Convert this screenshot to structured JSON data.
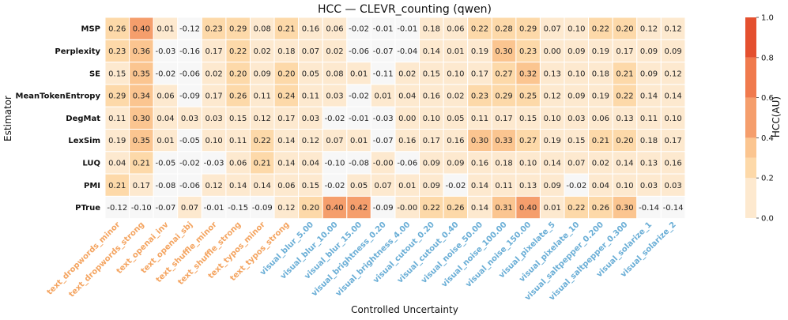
{
  "chart_data": {
    "type": "heatmap",
    "title": "HCC — CLEVR_counting (qwen)",
    "xlabel": "Controlled Uncertainty",
    "ylabel": "Estimator",
    "colorbar_label": "HCC(AU)",
    "colorbar_ticks": [
      "1.0",
      "0.8",
      "0.6",
      "0.4",
      "0.2",
      "0.0"
    ],
    "colorbar_range": [
      0,
      1
    ],
    "rows": [
      "MSP",
      "Perplexity",
      "SE",
      "MeanTokenEntropy",
      "DegMat",
      "LexSim",
      "LUQ",
      "PMI",
      "PTrue"
    ],
    "columns": [
      {
        "label": "text_dropwords_minor",
        "group": "text"
      },
      {
        "label": "text_dropwords_strong",
        "group": "text"
      },
      {
        "label": "text_openai_inv",
        "group": "text"
      },
      {
        "label": "text_openai_sbj",
        "group": "text"
      },
      {
        "label": "text_shuffle_minor",
        "group": "text"
      },
      {
        "label": "text_shuffle_strong",
        "group": "text"
      },
      {
        "label": "text_typos_minor",
        "group": "text"
      },
      {
        "label": "text_typos_strong",
        "group": "text"
      },
      {
        "label": "visual_blur_5.00",
        "group": "visual"
      },
      {
        "label": "visual_blur_10.00",
        "group": "visual"
      },
      {
        "label": "visual_blur_15.00",
        "group": "visual"
      },
      {
        "label": "visual_brightness_0.20",
        "group": "visual"
      },
      {
        "label": "visual_brightness_4.00",
        "group": "visual"
      },
      {
        "label": "visual_cutout_0.20",
        "group": "visual"
      },
      {
        "label": "visual_cutout_0.40",
        "group": "visual"
      },
      {
        "label": "visual_noise_50.00",
        "group": "visual"
      },
      {
        "label": "visual_noise_100.00",
        "group": "visual"
      },
      {
        "label": "visual_noise_150.00",
        "group": "visual"
      },
      {
        "label": "visual_pixelate_5",
        "group": "visual"
      },
      {
        "label": "visual_pixelate_10",
        "group": "visual"
      },
      {
        "label": "visual_saltpepper_0.200",
        "group": "visual"
      },
      {
        "label": "visual_saltpepper_0.300",
        "group": "visual"
      },
      {
        "label": "visual_solarize_1",
        "group": "visual"
      },
      {
        "label": "visual_solarize_2",
        "group": "visual"
      }
    ],
    "values": [
      [
        0.26,
        0.4,
        0.01,
        -0.12,
        0.23,
        0.29,
        0.08,
        0.21,
        0.16,
        0.06,
        -0.02,
        -0.01,
        -0.01,
        0.18,
        0.06,
        0.22,
        0.28,
        0.29,
        0.07,
        0.1,
        0.22,
        0.2,
        0.12,
        0.12
      ],
      [
        0.23,
        0.36,
        -0.03,
        -0.16,
        0.17,
        0.22,
        0.02,
        0.18,
        0.07,
        0.02,
        -0.06,
        -0.07,
        -0.04,
        0.14,
        0.01,
        0.19,
        0.3,
        0.23,
        0.0,
        0.09,
        0.19,
        0.17,
        0.09,
        0.09
      ],
      [
        0.15,
        0.35,
        -0.02,
        -0.06,
        0.02,
        0.2,
        0.09,
        0.2,
        0.05,
        0.08,
        0.01,
        -0.11,
        0.02,
        0.15,
        0.1,
        0.17,
        0.27,
        0.32,
        0.13,
        0.1,
        0.18,
        0.21,
        0.09,
        0.12
      ],
      [
        0.29,
        0.34,
        0.06,
        -0.09,
        0.17,
        0.26,
        0.11,
        0.24,
        0.11,
        0.03,
        -0.02,
        0.01,
        0.04,
        0.16,
        0.02,
        0.23,
        0.29,
        0.25,
        0.12,
        0.09,
        0.19,
        0.22,
        0.14,
        0.14
      ],
      [
        0.11,
        0.3,
        0.04,
        0.03,
        0.03,
        0.15,
        0.12,
        0.17,
        0.03,
        -0.02,
        -0.01,
        -0.03,
        0.0,
        0.1,
        0.05,
        0.11,
        0.17,
        0.15,
        0.1,
        0.03,
        0.06,
        0.13,
        0.11,
        0.1
      ],
      [
        0.19,
        0.35,
        0.01,
        -0.05,
        0.1,
        0.11,
        0.22,
        0.14,
        0.12,
        0.07,
        0.01,
        -0.07,
        0.16,
        0.17,
        0.16,
        0.3,
        0.33,
        0.27,
        0.19,
        0.15,
        0.21,
        0.2,
        0.18,
        0.17
      ],
      [
        0.04,
        0.21,
        -0.05,
        -0.02,
        -0.03,
        0.06,
        0.21,
        0.14,
        0.04,
        -0.1,
        -0.08,
        -0.0,
        -0.06,
        0.09,
        0.09,
        0.16,
        0.18,
        0.1,
        0.14,
        0.07,
        0.02,
        0.14,
        0.13,
        0.16
      ],
      [
        0.21,
        0.17,
        -0.08,
        -0.06,
        0.12,
        0.14,
        0.14,
        0.06,
        0.15,
        -0.02,
        0.05,
        0.07,
        0.01,
        0.09,
        -0.02,
        0.14,
        0.11,
        0.13,
        0.09,
        -0.02,
        0.04,
        0.1,
        0.03,
        0.03
      ],
      [
        -0.12,
        -0.1,
        -0.07,
        0.07,
        -0.01,
        -0.15,
        -0.09,
        0.12,
        0.2,
        0.4,
        0.42,
        -0.09,
        -0.0,
        0.22,
        0.26,
        0.14,
        0.31,
        0.4,
        0.01,
        0.22,
        0.26,
        0.3,
        -0.14,
        -0.14
      ]
    ],
    "value_labels": [
      [
        "0.26",
        "0.40",
        "0.01",
        "-0.12",
        "0.23",
        "0.29",
        "0.08",
        "0.21",
        "0.16",
        "0.06",
        "-0.02",
        "-0.01",
        "-0.01",
        "0.18",
        "0.06",
        "0.22",
        "0.28",
        "0.29",
        "0.07",
        "0.10",
        "0.22",
        "0.20",
        "0.12",
        "0.12"
      ],
      [
        "0.23",
        "0.36",
        "-0.03",
        "-0.16",
        "0.17",
        "0.22",
        "0.02",
        "0.18",
        "0.07",
        "0.02",
        "-0.06",
        "-0.07",
        "-0.04",
        "0.14",
        "0.01",
        "0.19",
        "0.30",
        "0.23",
        "0.00",
        "0.09",
        "0.19",
        "0.17",
        "0.09",
        "0.09"
      ],
      [
        "0.15",
        "0.35",
        "-0.02",
        "-0.06",
        "0.02",
        "0.20",
        "0.09",
        "0.20",
        "0.05",
        "0.08",
        "0.01",
        "-0.11",
        "0.02",
        "0.15",
        "0.10",
        "0.17",
        "0.27",
        "0.32",
        "0.13",
        "0.10",
        "0.18",
        "0.21",
        "0.09",
        "0.12"
      ],
      [
        "0.29",
        "0.34",
        "0.06",
        "-0.09",
        "0.17",
        "0.26",
        "0.11",
        "0.24",
        "0.11",
        "0.03",
        "-0.02",
        "0.01",
        "0.04",
        "0.16",
        "0.02",
        "0.23",
        "0.29",
        "0.25",
        "0.12",
        "0.09",
        "0.19",
        "0.22",
        "0.14",
        "0.14"
      ],
      [
        "0.11",
        "0.30",
        "0.04",
        "0.03",
        "0.03",
        "0.15",
        "0.12",
        "0.17",
        "0.03",
        "-0.02",
        "-0.01",
        "-0.03",
        "0.00",
        "0.10",
        "0.05",
        "0.11",
        "0.17",
        "0.15",
        "0.10",
        "0.03",
        "0.06",
        "0.13",
        "0.11",
        "0.10"
      ],
      [
        "0.19",
        "0.35",
        "0.01",
        "-0.05",
        "0.10",
        "0.11",
        "0.22",
        "0.14",
        "0.12",
        "0.07",
        "0.01",
        "-0.07",
        "0.16",
        "0.17",
        "0.16",
        "0.30",
        "0.33",
        "0.27",
        "0.19",
        "0.15",
        "0.21",
        "0.20",
        "0.18",
        "0.17"
      ],
      [
        "0.04",
        "0.21",
        "-0.05",
        "-0.02",
        "-0.03",
        "0.06",
        "0.21",
        "0.14",
        "0.04",
        "-0.10",
        "-0.08",
        "-0.00",
        "-0.06",
        "0.09",
        "0.09",
        "0.16",
        "0.18",
        "0.10",
        "0.14",
        "0.07",
        "0.02",
        "0.14",
        "0.13",
        "0.16"
      ],
      [
        "0.21",
        "0.17",
        "-0.08",
        "-0.06",
        "0.12",
        "0.14",
        "0.14",
        "0.06",
        "0.15",
        "-0.02",
        "0.05",
        "0.07",
        "0.01",
        "0.09",
        "-0.02",
        "0.14",
        "0.11",
        "0.13",
        "0.09",
        "-0.02",
        "0.04",
        "0.10",
        "0.03",
        "0.03"
      ],
      [
        "-0.12",
        "-0.10",
        "-0.07",
        "0.07",
        "-0.01",
        "-0.15",
        "-0.09",
        "0.12",
        "0.20",
        "0.40",
        "0.42",
        "-0.09",
        "-0.00",
        "0.22",
        "0.26",
        "0.14",
        "0.31",
        "0.40",
        "0.01",
        "0.22",
        "0.26",
        "0.30",
        "-0.14",
        "-0.14"
      ]
    ],
    "colors": {
      "text_group": "#f4a460",
      "visual_group": "#6aaed6",
      "bins": [
        "#f7f7f7",
        "#fde9cf",
        "#fdd9a9",
        "#fbc590",
        "#f59e6c",
        "#f07a4d",
        "#e4502f"
      ]
    }
  }
}
